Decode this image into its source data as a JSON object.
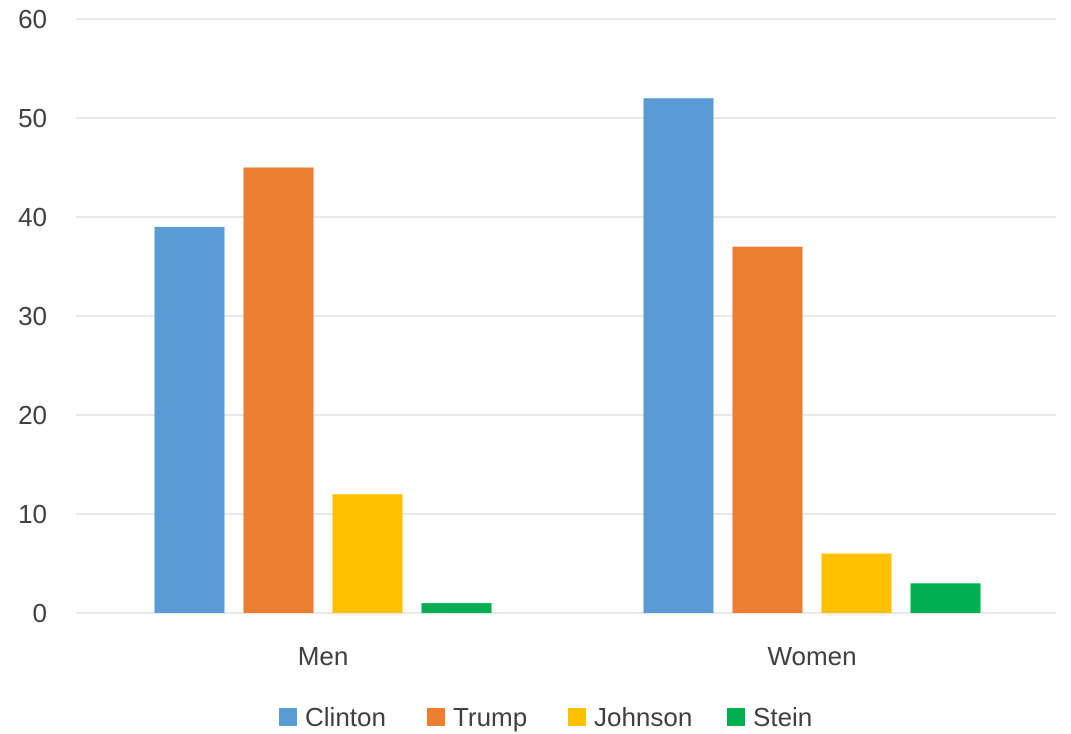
{
  "chart_data": {
    "type": "bar",
    "title": "",
    "xlabel": "",
    "ylabel": "",
    "categories": [
      "Men",
      "Women"
    ],
    "series": [
      {
        "name": "Clinton",
        "color": "#5b9bd5",
        "values": [
          39,
          52
        ]
      },
      {
        "name": "Trump",
        "color": "#ed7d31",
        "values": [
          45,
          37
        ]
      },
      {
        "name": "Johnson",
        "color": "#ffc000",
        "values": [
          12,
          6
        ]
      },
      {
        "name": "Stein",
        "color": "#00b050",
        "values": [
          1,
          3
        ]
      }
    ],
    "ylim": [
      0,
      60
    ],
    "yticks": [
      0,
      10,
      20,
      30,
      40,
      50,
      60
    ],
    "grid": true,
    "legend_position": "bottom",
    "gridline_color": "#d9d9d9",
    "text_color": "#404040"
  }
}
